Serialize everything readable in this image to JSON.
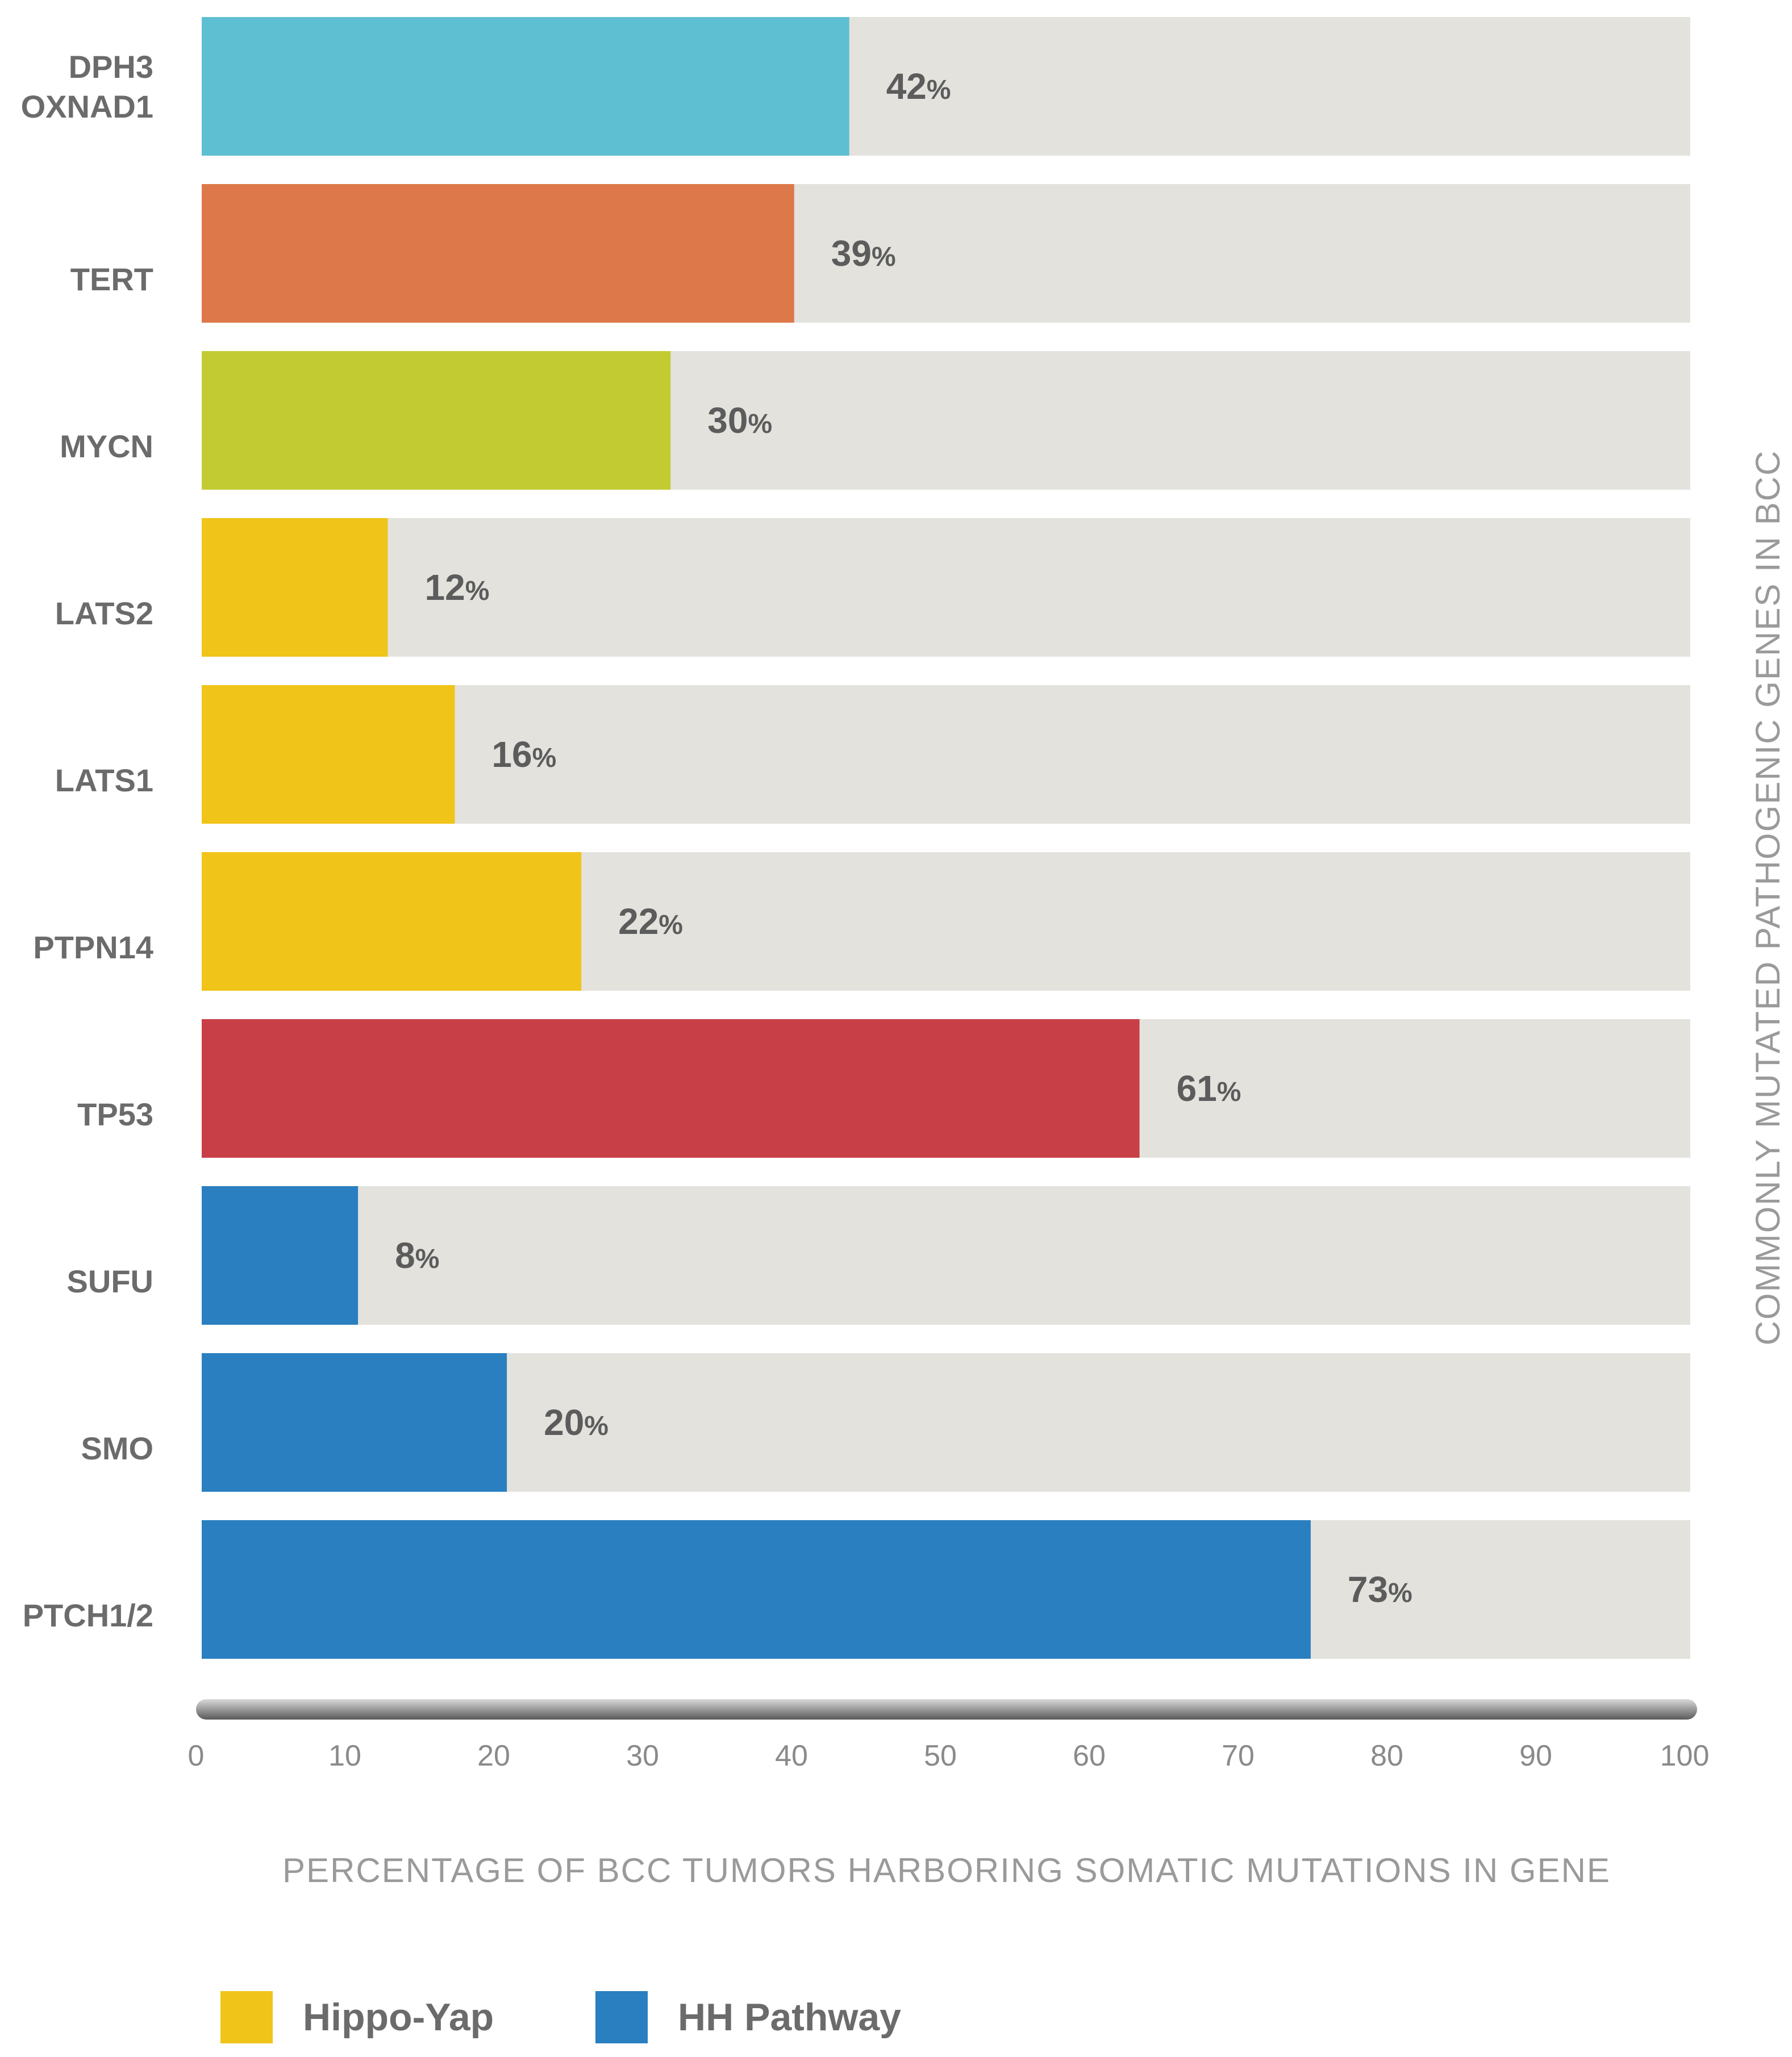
{
  "chart_data": {
    "type": "bar",
    "orientation": "horizontal",
    "categories": [
      "DPH3\nOXNAD1",
      "TERT",
      "MYCN",
      "LATS2",
      "LATS1",
      "PTPN14",
      "TP53",
      "SUFU",
      "SMO",
      "PTCH1/2"
    ],
    "values": [
      42,
      39,
      30,
      12,
      16,
      22,
      61,
      8,
      20,
      73
    ],
    "bar_fill_values": [
      43.5,
      39.8,
      31.5,
      12.5,
      17,
      25.5,
      63,
      10.5,
      20.5,
      74.5
    ],
    "value_labels": [
      "42",
      "39",
      "30",
      "12",
      "16",
      "22",
      "61",
      "8",
      "20",
      "73"
    ],
    "value_suffix": "%",
    "colors": [
      "#5ebfd3",
      "#dd784a",
      "#c3cb33",
      "#f0c419",
      "#f0c419",
      "#f0c419",
      "#c83f47",
      "#2a7fc0",
      "#2a7fc0",
      "#2a7fc0"
    ],
    "track_color": "#e3e2dd",
    "xlim": [
      0,
      100
    ],
    "xticks": [
      0,
      10,
      20,
      30,
      40,
      50,
      60,
      70,
      80,
      90,
      100
    ],
    "xlabel": "PERCENTAGE OF BCC TUMORS HARBORING SOMATIC MUTATIONS IN GENE",
    "ylabel": "COMMONLY MUTATED PATHOGENIC GENES IN BCC",
    "legend_position": "bottom-left",
    "legend": [
      {
        "label": "Hippo-Yap",
        "color": "#f0c419"
      },
      {
        "label": "HH Pathway",
        "color": "#2a7fc0"
      }
    ],
    "grid": false
  }
}
